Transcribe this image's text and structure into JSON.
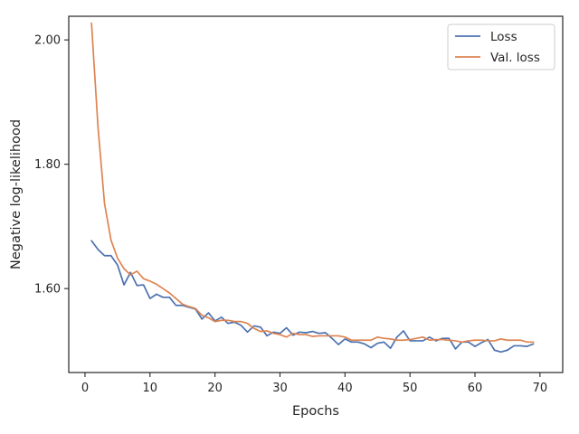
{
  "chart_data": {
    "type": "line",
    "title": "",
    "xlabel": "Epochs",
    "ylabel": "Negative log-likelihood",
    "xlim": [
      -2.5,
      73.5
    ],
    "ylim": [
      1.465,
      2.038
    ],
    "xticks": [
      0,
      10,
      20,
      30,
      40,
      50,
      60,
      70
    ],
    "yticks": [
      1.6,
      1.8,
      2.0
    ],
    "ytick_labels": [
      "1.60",
      "1.80",
      "2.00"
    ],
    "grid": false,
    "legend_position": "top-right",
    "x": [
      1,
      2,
      3,
      4,
      5,
      6,
      7,
      8,
      9,
      10,
      11,
      12,
      13,
      14,
      15,
      16,
      17,
      18,
      19,
      20,
      21,
      22,
      23,
      24,
      25,
      26,
      27,
      28,
      29,
      30,
      31,
      32,
      33,
      34,
      35,
      36,
      37,
      38,
      39,
      40,
      41,
      42,
      43,
      44,
      45,
      46,
      47,
      48,
      49,
      50,
      51,
      52,
      53,
      54,
      55,
      56,
      57,
      58,
      59,
      60,
      61,
      62,
      63,
      64,
      65,
      66,
      67,
      68,
      69
    ],
    "series": [
      {
        "name": "Loss",
        "color": "#4c72b0",
        "values": [
          1.677,
          1.663,
          1.653,
          1.653,
          1.638,
          1.606,
          1.626,
          1.605,
          1.606,
          1.584,
          1.591,
          1.586,
          1.586,
          1.573,
          1.573,
          1.57,
          1.567,
          1.551,
          1.561,
          1.548,
          1.554,
          1.544,
          1.546,
          1.541,
          1.53,
          1.54,
          1.538,
          1.524,
          1.53,
          1.528,
          1.537,
          1.525,
          1.53,
          1.529,
          1.531,
          1.528,
          1.529,
          1.52,
          1.51,
          1.519,
          1.514,
          1.514,
          1.511,
          1.505,
          1.512,
          1.514,
          1.504,
          1.522,
          1.532,
          1.516,
          1.516,
          1.516,
          1.522,
          1.516,
          1.52,
          1.52,
          1.503,
          1.514,
          1.514,
          1.507,
          1.513,
          1.518,
          1.501,
          1.498,
          1.501,
          1.508,
          1.508,
          1.507,
          1.511
        ]
      },
      {
        "name": "Val. loss",
        "color": "#dd8452",
        "values": [
          2.027,
          1.86,
          1.737,
          1.678,
          1.649,
          1.632,
          1.622,
          1.628,
          1.616,
          1.612,
          1.607,
          1.6,
          1.593,
          1.584,
          1.575,
          1.571,
          1.568,
          1.557,
          1.553,
          1.547,
          1.549,
          1.549,
          1.547,
          1.547,
          1.544,
          1.536,
          1.531,
          1.532,
          1.528,
          1.526,
          1.522,
          1.528,
          1.526,
          1.526,
          1.523,
          1.524,
          1.524,
          1.524,
          1.524,
          1.522,
          1.517,
          1.517,
          1.517,
          1.517,
          1.522,
          1.52,
          1.519,
          1.517,
          1.517,
          1.518,
          1.52,
          1.522,
          1.517,
          1.518,
          1.518,
          1.517,
          1.516,
          1.514,
          1.516,
          1.517,
          1.517,
          1.516,
          1.516,
          1.519,
          1.517,
          1.517,
          1.517,
          1.514,
          1.514
        ]
      }
    ]
  }
}
